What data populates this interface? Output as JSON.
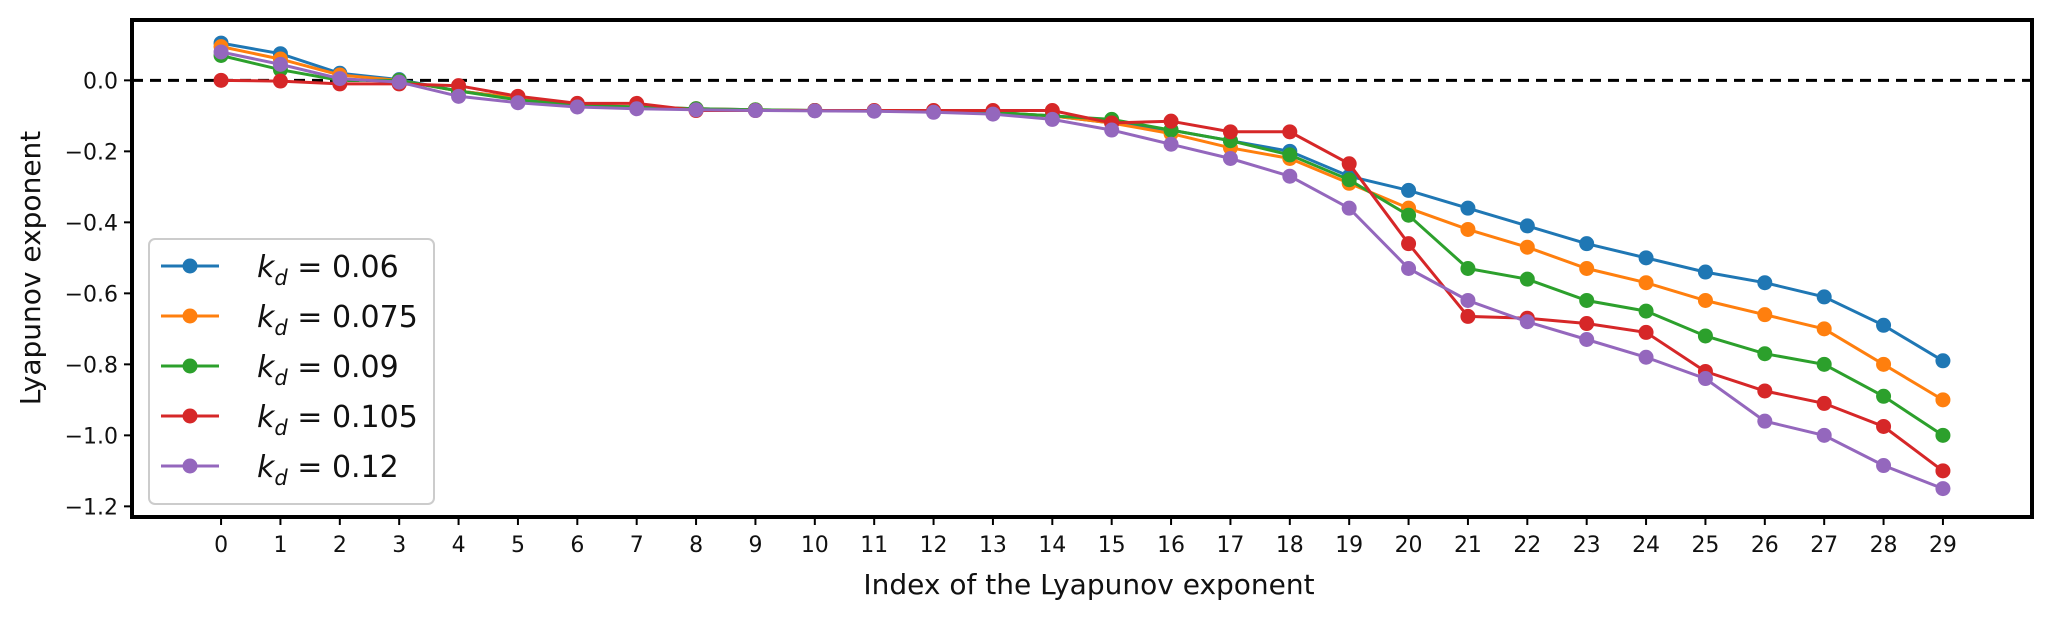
{
  "chart_data": {
    "type": "line",
    "title": "",
    "xlabel": "Index of the Lyapunov exponent",
    "ylabel": "Lyapunov exponent",
    "xlim": [
      -1.5,
      30.5
    ],
    "ylim": [
      -1.23,
      0.17
    ],
    "x_ticks": [
      "0",
      "1",
      "2",
      "3",
      "4",
      "5",
      "6",
      "7",
      "8",
      "9",
      "10",
      "11",
      "12",
      "13",
      "14",
      "15",
      "16",
      "17",
      "18",
      "19",
      "20",
      "21",
      "22",
      "23",
      "24",
      "25",
      "26",
      "27",
      "28",
      "29"
    ],
    "y_ticks": [
      "0.0",
      "−0.2",
      "−0.4",
      "−0.6",
      "−0.8",
      "−1.0",
      "−1.2"
    ],
    "y_tick_values": [
      0.0,
      -0.2,
      -0.4,
      -0.6,
      -0.8,
      -1.0,
      -1.2
    ],
    "reference_line": {
      "y": 0.0,
      "style": "dashed"
    },
    "legend_position": "center-left",
    "x": [
      0,
      1,
      2,
      3,
      4,
      5,
      6,
      7,
      8,
      9,
      10,
      11,
      12,
      13,
      14,
      15,
      16,
      17,
      18,
      19,
      20,
      21,
      22,
      23,
      24,
      25,
      26,
      27,
      28,
      29
    ],
    "series": [
      {
        "name": "0.06",
        "label_var": "k",
        "label_sub": "d",
        "label_rel": " = ",
        "label_val": "0.06",
        "color": "#1f77b4",
        "values": [
          0.105,
          0.075,
          0.02,
          0.002,
          -0.03,
          -0.05,
          -0.07,
          -0.075,
          -0.08,
          -0.083,
          -0.085,
          -0.086,
          -0.088,
          -0.09,
          -0.1,
          -0.12,
          -0.14,
          -0.17,
          -0.2,
          -0.27,
          -0.31,
          -0.36,
          -0.41,
          -0.46,
          -0.5,
          -0.54,
          -0.57,
          -0.61,
          -0.69,
          -0.79
        ]
      },
      {
        "name": "0.075",
        "label_var": "k",
        "label_sub": "d",
        "label_rel": " = ",
        "label_val": "0.075",
        "color": "#ff7f0e",
        "values": [
          0.095,
          0.06,
          0.015,
          0.0,
          -0.03,
          -0.05,
          -0.07,
          -0.075,
          -0.08,
          -0.083,
          -0.085,
          -0.086,
          -0.088,
          -0.09,
          -0.1,
          -0.12,
          -0.15,
          -0.19,
          -0.22,
          -0.29,
          -0.36,
          -0.42,
          -0.47,
          -0.53,
          -0.57,
          -0.62,
          -0.66,
          -0.7,
          -0.8,
          -0.9
        ]
      },
      {
        "name": "0.09",
        "label_var": "k",
        "label_sub": "d",
        "label_rel": " = ",
        "label_val": "0.09",
        "color": "#2ca02c",
        "values": [
          0.07,
          0.03,
          0.0,
          0.0,
          -0.03,
          -0.055,
          -0.07,
          -0.075,
          -0.08,
          -0.083,
          -0.085,
          -0.086,
          -0.088,
          -0.09,
          -0.1,
          -0.11,
          -0.14,
          -0.17,
          -0.21,
          -0.28,
          -0.38,
          -0.53,
          -0.56,
          -0.62,
          -0.65,
          -0.72,
          -0.77,
          -0.8,
          -0.89,
          -1.0
        ]
      },
      {
        "name": "0.105",
        "label_var": "k",
        "label_sub": "d",
        "label_rel": " = ",
        "label_val": "0.105",
        "color": "#d62728",
        "values": [
          0.0,
          -0.002,
          -0.01,
          -0.01,
          -0.015,
          -0.045,
          -0.065,
          -0.065,
          -0.085,
          -0.085,
          -0.085,
          -0.085,
          -0.085,
          -0.085,
          -0.085,
          -0.12,
          -0.115,
          -0.145,
          -0.145,
          -0.235,
          -0.46,
          -0.665,
          -0.67,
          -0.685,
          -0.71,
          -0.82,
          -0.875,
          -0.91,
          -0.975,
          -1.1
        ]
      },
      {
        "name": "0.12",
        "label_var": "k",
        "label_sub": "d",
        "label_rel": " = ",
        "label_val": "0.12",
        "color": "#9467bd",
        "values": [
          0.08,
          0.045,
          0.005,
          -0.005,
          -0.045,
          -0.063,
          -0.075,
          -0.08,
          -0.083,
          -0.085,
          -0.086,
          -0.087,
          -0.09,
          -0.095,
          -0.11,
          -0.14,
          -0.18,
          -0.22,
          -0.27,
          -0.36,
          -0.53,
          -0.62,
          -0.68,
          -0.73,
          -0.78,
          -0.84,
          -0.96,
          -1.0,
          -1.085,
          -1.15
        ]
      }
    ]
  }
}
